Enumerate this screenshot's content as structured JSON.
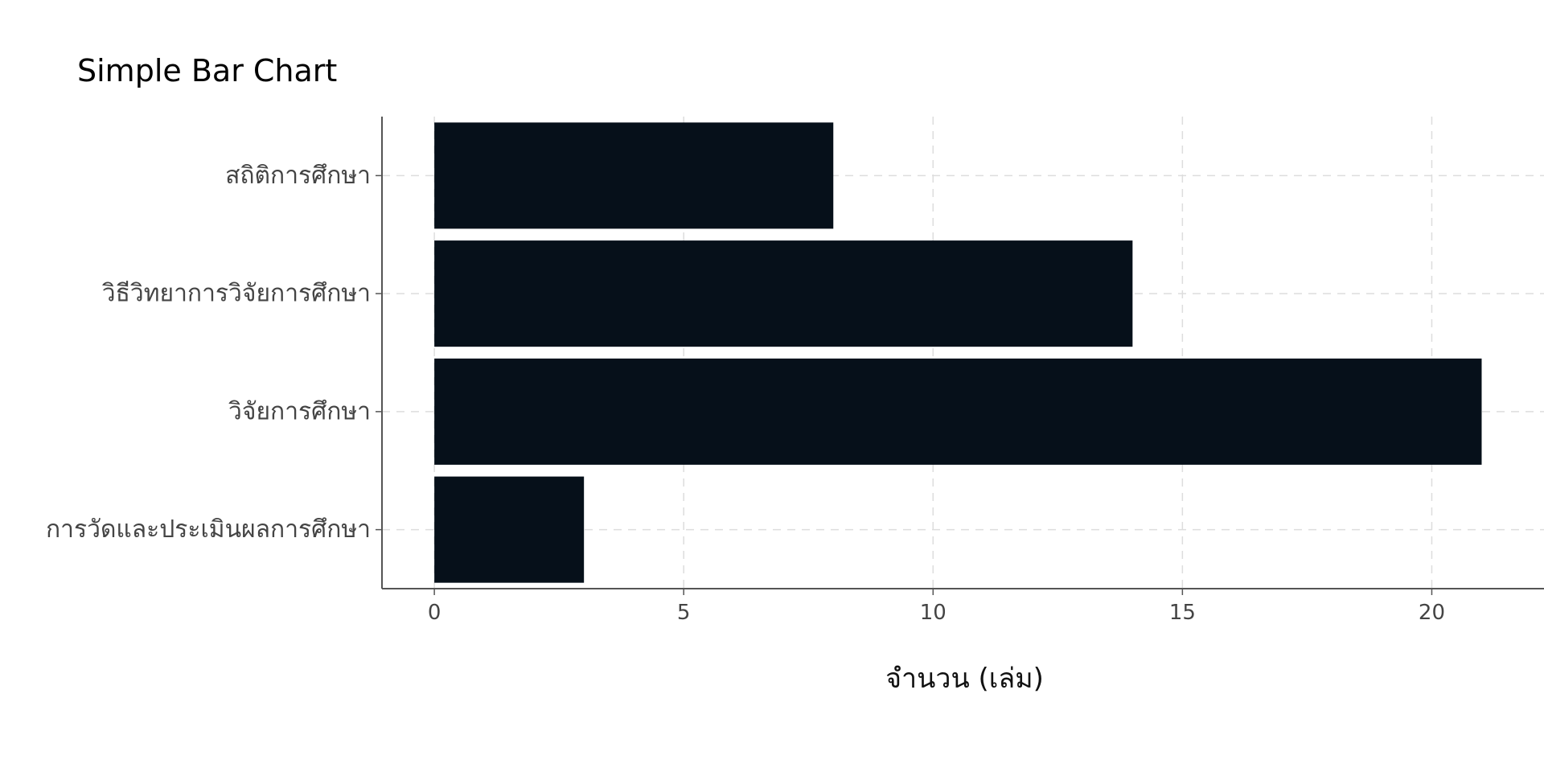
{
  "chart_data": {
    "type": "bar",
    "orientation": "horizontal",
    "title": "Simple Bar Chart",
    "xlabel": "จำนวน (เล่ม)",
    "ylabel": "",
    "categories": [
      "สถิติการศึกษา",
      "วิธีวิทยาการวิจัยการศึกษา",
      "วิจัยการศึกษา",
      "การวัดและประเมินผลการศึกษา"
    ],
    "values": [
      8,
      14,
      21,
      3
    ],
    "xlim": [
      -1.05,
      22.25
    ],
    "xticks": [
      0,
      5,
      10,
      15,
      20
    ],
    "xtick_labels": [
      "0",
      "5",
      "10",
      "15",
      "20"
    ],
    "bar_color": "#06101A",
    "grid": true,
    "grid_style": "dashed",
    "grid_color": "#DDDDDD",
    "axis_color": "#555555",
    "legend": "none"
  }
}
